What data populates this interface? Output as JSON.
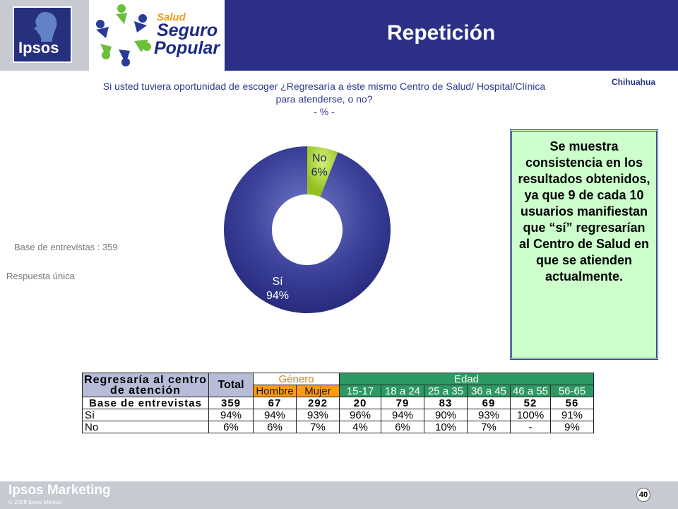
{
  "header": {
    "title": "Repetición",
    "region": "Chihuahua",
    "ipsos_logo_text": "Ipsos",
    "partner_logo": {
      "line1": "Salud",
      "line2": "Seguro",
      "line3": "Popular"
    }
  },
  "question": {
    "line1": "Si usted tuviera oportunidad de escoger ¿Regresaría a éste mismo Centro de Salud/ Hospital/Clínica",
    "line2": "para atenderse, o no?",
    "line3": "- % -"
  },
  "notes": {
    "base": "Base de entrevistas : 359",
    "response": "Respuesta única"
  },
  "callout": {
    "text": "Se muestra consistencia en los resultados obtenidos, ya que 9 de cada 10 usuarios manifiestan que “sí” regresarían al Centro de Salud en que se atienden actualmente."
  },
  "chart_data": {
    "type": "pie",
    "donut": true,
    "slices": [
      {
        "label": "No",
        "value": 6,
        "value_label": "6%",
        "color": "#a9d52e"
      },
      {
        "label": "Sí",
        "value": 94,
        "value_label": "94%",
        "color": "#2f3590"
      }
    ]
  },
  "table": {
    "header_question_line1": "Regresaría al centro",
    "header_question_line2": "de atención",
    "header_total": "Total",
    "header_gender": "Género",
    "header_age": "Edad",
    "subheaders": [
      "Hombre",
      "Mujer",
      "15-17",
      "18 a 24",
      "25 a 35",
      "36 a 45",
      "46 a 55",
      "56-65"
    ],
    "rows": [
      {
        "label": "Base de entrevistas",
        "values": [
          "359",
          "67",
          "292",
          "20",
          "79",
          "83",
          "69",
          "52",
          "56"
        ]
      },
      {
        "label": "Sí",
        "values": [
          "94%",
          "94%",
          "93%",
          "96%",
          "94%",
          "90%",
          "93%",
          "100%",
          "91%"
        ]
      },
      {
        "label": "No",
        "values": [
          "6%",
          "6%",
          "7%",
          "4%",
          "6%",
          "10%",
          "7%",
          "-",
          "9%"
        ]
      }
    ],
    "colors": {
      "gender": "#ff9b14",
      "age": "#2e9a63",
      "question": "#b7bdd8"
    }
  },
  "footer": {
    "brand": "Ipsos Marketing",
    "copyright": "© 2008 Ipsos México",
    "page": "40"
  }
}
